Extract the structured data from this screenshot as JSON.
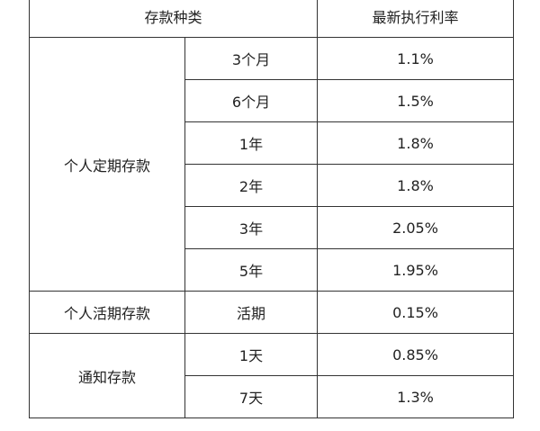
{
  "table": {
    "header": [
      "存款种类",
      "最新执行利率"
    ],
    "groups": [
      {
        "name": "个人定期存款",
        "rows": [
          {
            "term": "3个月",
            "rate": "1.1%"
          },
          {
            "term": "6个月",
            "rate": "1.5%"
          },
          {
            "term": "1年",
            "rate": "1.8%"
          },
          {
            "term": "2年",
            "rate": "1.8%"
          },
          {
            "term": "3年",
            "rate": "2.05%"
          },
          {
            "term": "5年",
            "rate": "1.95%"
          }
        ]
      },
      {
        "name": "个人活期存款",
        "rows": [
          {
            "term": "活期",
            "rate": "0.15%"
          }
        ]
      },
      {
        "name": "通知存款",
        "rows": [
          {
            "term": "1天",
            "rate": "0.85%"
          },
          {
            "term": "7天",
            "rate": "1.3%"
          }
        ]
      }
    ]
  }
}
